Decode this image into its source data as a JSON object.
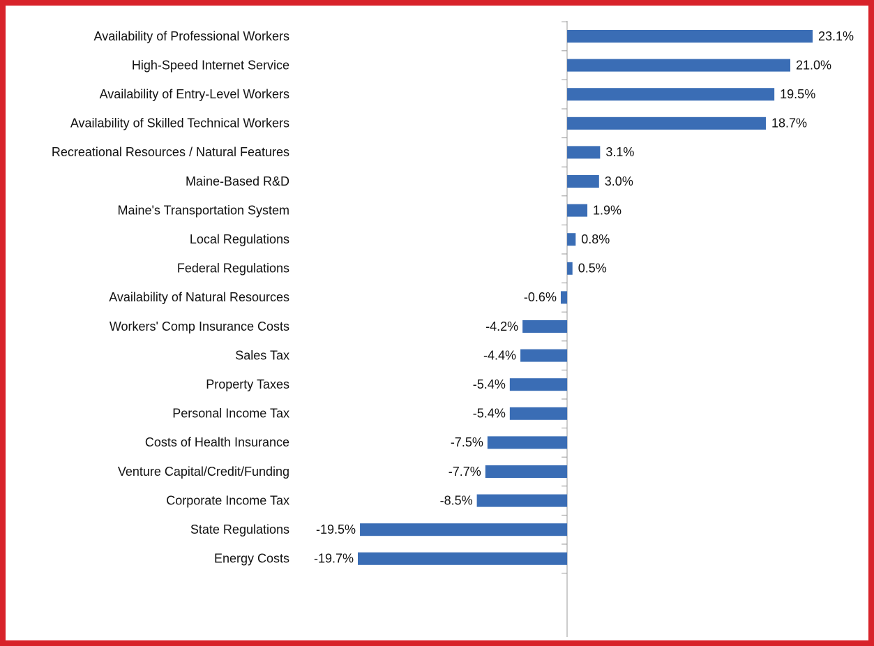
{
  "chart_data": {
    "type": "hbar",
    "categories": [
      "Availability of Professional Workers",
      "High-Speed Internet Service",
      "Availability of Entry-Level Workers",
      "Availability of Skilled Technical Workers",
      "Recreational Resources / Natural Features",
      "Maine-Based R&D",
      "Maine's Transportation System",
      "Local Regulations",
      "Federal Regulations",
      "Availability of Natural Resources",
      "Workers' Comp Insurance Costs",
      "Sales Tax",
      "Property Taxes",
      "Personal Income Tax",
      "Costs of Health Insurance",
      "Venture Capital/Credit/Funding",
      "Corporate Income Tax",
      "State Regulations",
      "Energy Costs"
    ],
    "values": [
      23.1,
      21.0,
      19.5,
      18.7,
      3.1,
      3.0,
      1.9,
      0.8,
      0.5,
      -0.6,
      -4.2,
      -4.4,
      -5.4,
      -5.4,
      -7.5,
      -7.7,
      -8.5,
      -19.5,
      -19.7
    ],
    "value_labels": [
      "23.1%",
      "21.0%",
      "19.5%",
      "18.7%",
      "3.1%",
      "3.0%",
      "1.9%",
      "0.8%",
      "0.5%",
      "-0.6%",
      "-4.2%",
      "-4.4%",
      "-5.4%",
      "-5.4%",
      "-7.5%",
      "-7.7%",
      "-8.5%",
      "-19.5%",
      "-19.7%"
    ],
    "color": "#3a6db5"
  }
}
